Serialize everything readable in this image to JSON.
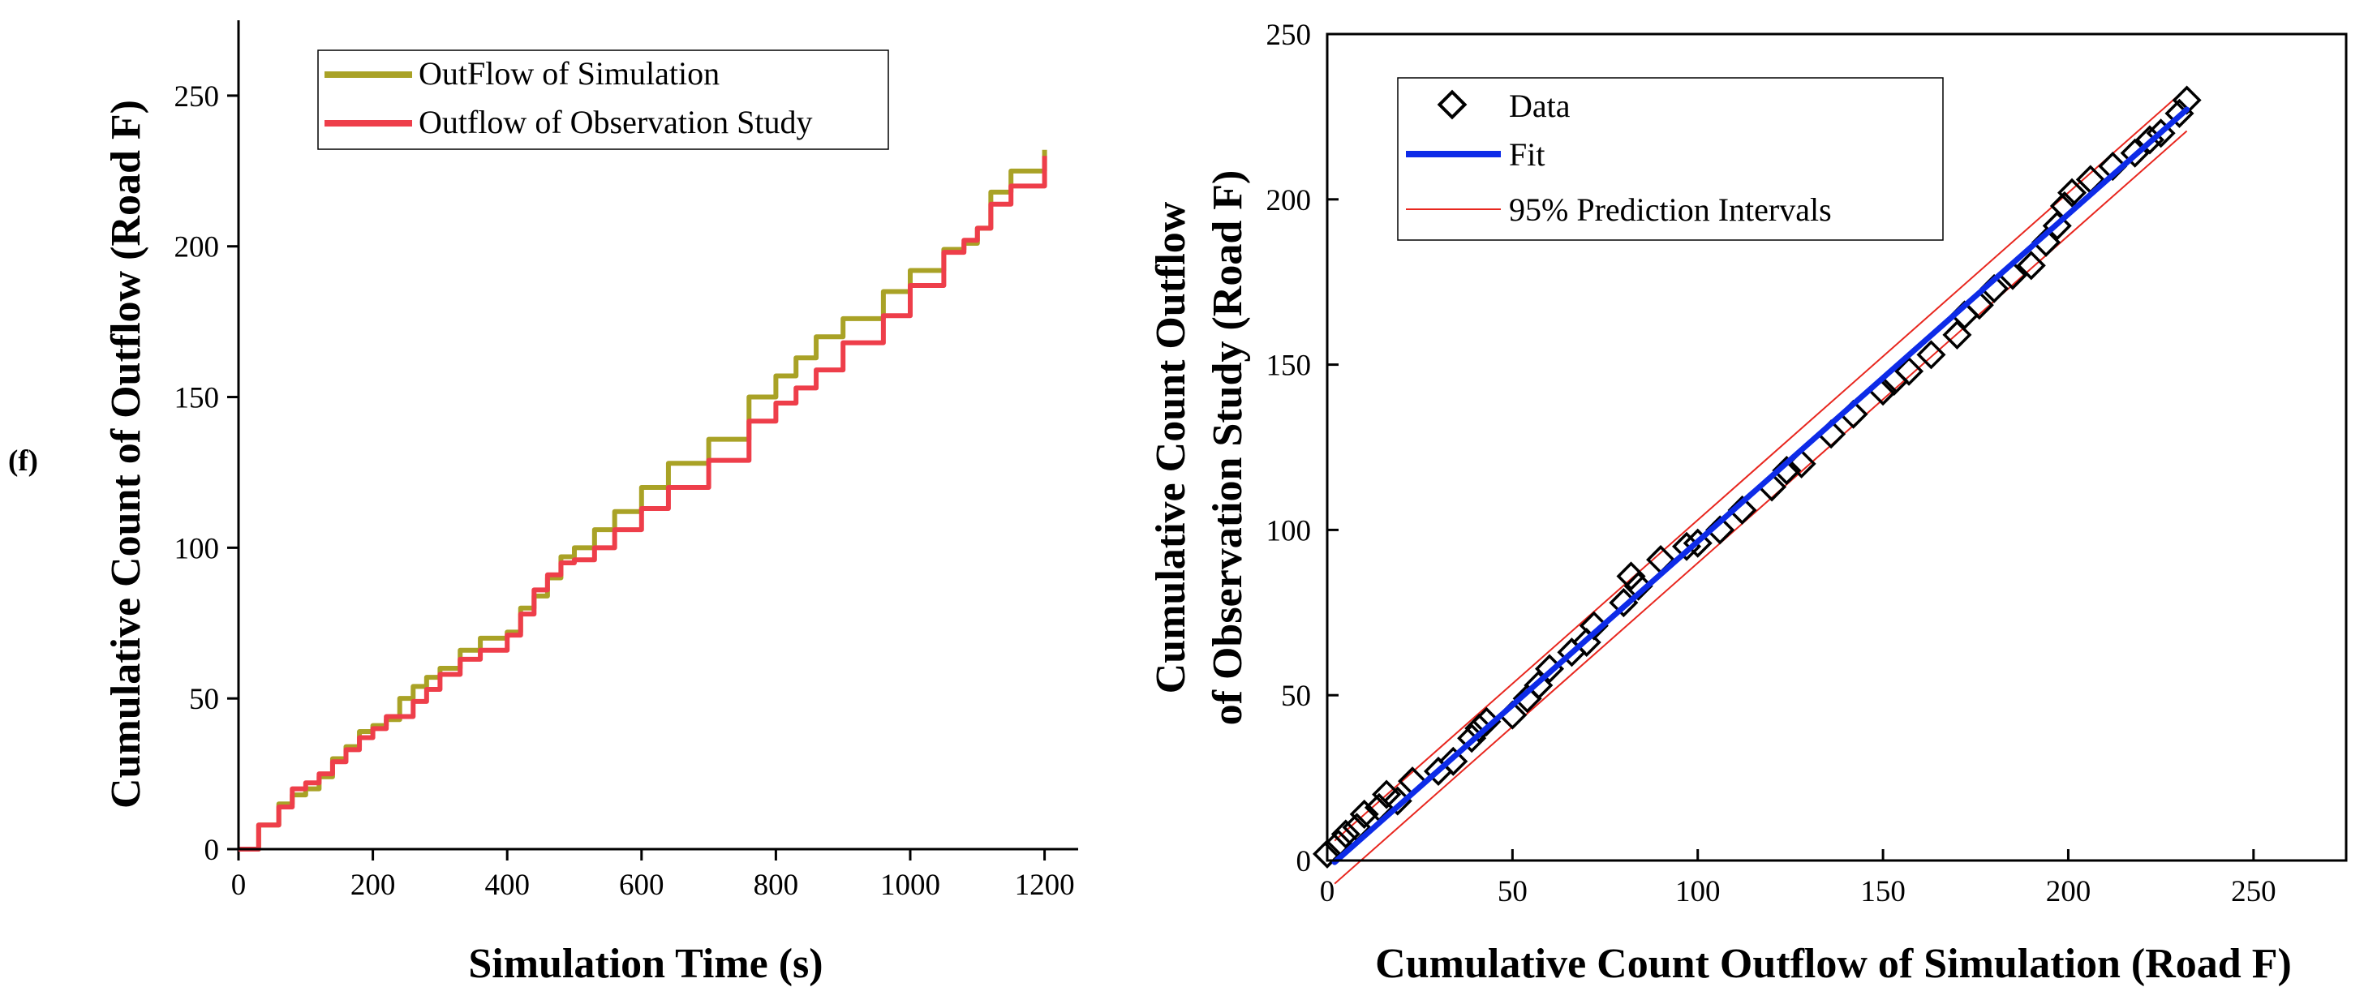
{
  "panel_label": "(f)",
  "colors": {
    "simulation": "#A9A226",
    "observation": "#EE3E4A",
    "fit": "#0D2BE8",
    "prediction": "#E8271F",
    "data_marker": "#000000"
  },
  "chart_data": [
    {
      "type": "line",
      "title": "",
      "xlabel": "Simulation Time (s)",
      "ylabel": "Cumulative Count of Outflow (Road F)",
      "xlim": [
        0,
        1250
      ],
      "ylim": [
        0,
        275
      ],
      "xticks": [
        0,
        200,
        400,
        600,
        800,
        1000,
        1200
      ],
      "yticks": [
        0,
        50,
        100,
        150,
        200,
        250
      ],
      "legend_position": "top-center",
      "series": [
        {
          "name": "OutFlow of Simulation",
          "color": "#A9A226",
          "x": [
            0,
            30,
            60,
            80,
            100,
            120,
            140,
            160,
            180,
            200,
            220,
            240,
            260,
            280,
            300,
            330,
            360,
            400,
            420,
            440,
            460,
            480,
            500,
            530,
            560,
            600,
            640,
            700,
            760,
            800,
            830,
            860,
            900,
            960,
            1000,
            1050,
            1080,
            1100,
            1120,
            1150,
            1200
          ],
          "values": [
            0,
            8,
            15,
            18,
            20,
            24,
            30,
            34,
            39,
            41,
            43,
            50,
            54,
            57,
            60,
            66,
            70,
            72,
            80,
            84,
            90,
            97,
            100,
            106,
            112,
            120,
            128,
            136,
            150,
            157,
            163,
            170,
            176,
            185,
            192,
            199,
            201,
            206,
            218,
            225,
            232
          ]
        },
        {
          "name": "Outflow of Observation Study",
          "color": "#EE3E4A",
          "x": [
            0,
            30,
            60,
            80,
            100,
            120,
            140,
            160,
            180,
            200,
            220,
            240,
            260,
            280,
            300,
            330,
            360,
            400,
            420,
            440,
            460,
            480,
            500,
            530,
            560,
            600,
            640,
            700,
            760,
            800,
            830,
            860,
            900,
            960,
            1000,
            1050,
            1080,
            1100,
            1120,
            1150,
            1200
          ],
          "values": [
            0,
            8,
            14,
            20,
            22,
            25,
            29,
            33,
            37,
            40,
            44,
            44,
            49,
            53,
            58,
            63,
            66,
            71,
            78,
            86,
            91,
            95,
            96,
            100,
            106,
            113,
            120,
            129,
            142,
            148,
            153,
            159,
            168,
            177,
            187,
            198,
            202,
            206,
            214,
            220,
            230
          ]
        }
      ]
    },
    {
      "type": "scatter",
      "title": "",
      "xlabel": "Cumulative Count Outflow of Simulation (Road F)",
      "ylabel": "Cumulative Count Outflow of Observation Study (Road F)",
      "ylabel_lines": [
        "Cumulative Count Outflow",
        "of Observation Study (Road F)"
      ],
      "xlim": [
        0,
        275
      ],
      "ylim": [
        0,
        250
      ],
      "xticks": [
        0,
        50,
        100,
        150,
        200,
        250
      ],
      "yticks": [
        0,
        50,
        100,
        150,
        200,
        250
      ],
      "legend_position": "top-left",
      "legend": [
        "Data",
        "Fit",
        "95% Prediction Intervals"
      ],
      "data_points": {
        "x": [
          0,
          3,
          5,
          8,
          10,
          14,
          16,
          19,
          23,
          30,
          34,
          39,
          41,
          43,
          50,
          54,
          57,
          60,
          66,
          70,
          72,
          80,
          82,
          84,
          90,
          97,
          100,
          106,
          112,
          120,
          124,
          128,
          136,
          142,
          150,
          153,
          157,
          163,
          170,
          172,
          176,
          180,
          185,
          190,
          194,
          197,
          199,
          201,
          206,
          212,
          218,
          222,
          225,
          230,
          232
        ],
        "y": [
          2,
          5,
          8,
          10,
          14,
          16,
          20,
          18,
          24,
          27,
          30,
          37,
          40,
          42,
          44,
          49,
          53,
          58,
          63,
          66,
          71,
          78,
          86,
          83,
          91,
          95,
          96,
          100,
          106,
          113,
          118,
          120,
          129,
          135,
          142,
          145,
          148,
          153,
          159,
          165,
          168,
          173,
          177,
          180,
          187,
          192,
          198,
          202,
          206,
          210,
          214,
          218,
          220,
          226,
          230
        ]
      },
      "fit": {
        "slope": 0.99,
        "intercept": -2.5,
        "x_range": [
          2,
          232
        ]
      },
      "prediction_interval_offset": 6.5
    }
  ]
}
